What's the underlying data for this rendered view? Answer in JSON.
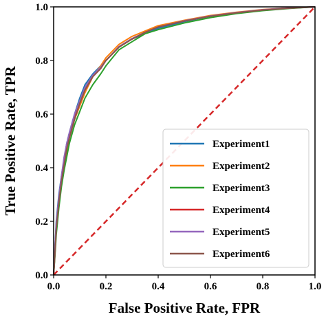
{
  "chart_data": {
    "type": "line",
    "title": "",
    "xlabel": "False Positive Rate, FPR",
    "ylabel": "True Positive Rate, TPR",
    "xlim": [
      0,
      1
    ],
    "ylim": [
      0,
      1
    ],
    "xticks": [
      "0.0",
      "0.2",
      "0.4",
      "0.6",
      "0.8",
      "1.0"
    ],
    "yticks": [
      "0.0",
      "0.2",
      "0.4",
      "0.6",
      "0.8",
      "1.0"
    ],
    "grid": false,
    "legend_position": "bottom-right",
    "reference_line": {
      "x": [
        0,
        1
      ],
      "y": [
        0,
        1
      ],
      "color": "#d62728",
      "style": "dashed"
    },
    "series": [
      {
        "name": "Experiment1",
        "color": "#1f77b4",
        "x": [
          0.0,
          0.005,
          0.01,
          0.02,
          0.03,
          0.04,
          0.05,
          0.06,
          0.08,
          0.1,
          0.12,
          0.15,
          0.18,
          0.2,
          0.25,
          0.3,
          0.35,
          0.4,
          0.5,
          0.6,
          0.7,
          0.8,
          0.9,
          1.0
        ],
        "y": [
          0.0,
          0.1,
          0.2,
          0.3,
          0.37,
          0.43,
          0.49,
          0.53,
          0.6,
          0.66,
          0.71,
          0.75,
          0.78,
          0.8,
          0.85,
          0.88,
          0.9,
          0.92,
          0.945,
          0.965,
          0.978,
          0.988,
          0.995,
          1.0
        ]
      },
      {
        "name": "Experiment2",
        "color": "#ff7f0e",
        "x": [
          0.0,
          0.005,
          0.01,
          0.02,
          0.03,
          0.04,
          0.05,
          0.06,
          0.08,
          0.1,
          0.12,
          0.15,
          0.18,
          0.2,
          0.25,
          0.3,
          0.35,
          0.4,
          0.5,
          0.6,
          0.7,
          0.8,
          0.9,
          1.0
        ],
        "y": [
          0.0,
          0.08,
          0.17,
          0.27,
          0.35,
          0.41,
          0.46,
          0.51,
          0.58,
          0.63,
          0.68,
          0.74,
          0.78,
          0.81,
          0.86,
          0.89,
          0.91,
          0.93,
          0.95,
          0.968,
          0.98,
          0.99,
          0.996,
          1.0
        ]
      },
      {
        "name": "Experiment3",
        "color": "#2ca02c",
        "x": [
          0.0,
          0.005,
          0.01,
          0.02,
          0.03,
          0.04,
          0.05,
          0.06,
          0.08,
          0.1,
          0.12,
          0.15,
          0.18,
          0.2,
          0.25,
          0.3,
          0.35,
          0.4,
          0.5,
          0.6,
          0.7,
          0.8,
          0.9,
          1.0
        ],
        "y": [
          0.0,
          0.07,
          0.15,
          0.25,
          0.33,
          0.39,
          0.44,
          0.49,
          0.56,
          0.61,
          0.66,
          0.71,
          0.75,
          0.78,
          0.84,
          0.87,
          0.9,
          0.915,
          0.94,
          0.96,
          0.975,
          0.986,
          0.994,
          1.0
        ]
      },
      {
        "name": "Experiment4",
        "color": "#d62728",
        "x": [
          0.0,
          0.005,
          0.01,
          0.02,
          0.03,
          0.04,
          0.05,
          0.06,
          0.08,
          0.1,
          0.12,
          0.15,
          0.18,
          0.2,
          0.25,
          0.3,
          0.35,
          0.4,
          0.5,
          0.6,
          0.7,
          0.8,
          0.9,
          1.0
        ],
        "y": [
          0.0,
          0.09,
          0.18,
          0.28,
          0.36,
          0.42,
          0.47,
          0.52,
          0.59,
          0.64,
          0.69,
          0.74,
          0.77,
          0.8,
          0.85,
          0.88,
          0.905,
          0.925,
          0.948,
          0.966,
          0.979,
          0.989,
          0.996,
          1.0
        ]
      },
      {
        "name": "Experiment5",
        "color": "#9467bd",
        "x": [
          0.0,
          0.005,
          0.01,
          0.02,
          0.03,
          0.04,
          0.05,
          0.06,
          0.08,
          0.1,
          0.12,
          0.15,
          0.18,
          0.2,
          0.25,
          0.3,
          0.35,
          0.4,
          0.5,
          0.6,
          0.7,
          0.8,
          0.9,
          1.0
        ],
        "y": [
          0.0,
          0.1,
          0.19,
          0.29,
          0.37,
          0.44,
          0.49,
          0.53,
          0.6,
          0.65,
          0.7,
          0.745,
          0.775,
          0.8,
          0.852,
          0.882,
          0.905,
          0.925,
          0.948,
          0.966,
          0.979,
          0.989,
          0.996,
          1.0
        ]
      },
      {
        "name": "Experiment6",
        "color": "#8c564b",
        "x": [
          0.0,
          0.005,
          0.01,
          0.02,
          0.03,
          0.04,
          0.05,
          0.06,
          0.08,
          0.1,
          0.12,
          0.15,
          0.18,
          0.2,
          0.25,
          0.3,
          0.35,
          0.4,
          0.5,
          0.6,
          0.7,
          0.8,
          0.9,
          1.0
        ],
        "y": [
          0.0,
          0.08,
          0.17,
          0.27,
          0.35,
          0.41,
          0.47,
          0.51,
          0.58,
          0.64,
          0.69,
          0.74,
          0.77,
          0.8,
          0.85,
          0.88,
          0.905,
          0.925,
          0.947,
          0.965,
          0.978,
          0.988,
          0.995,
          1.0
        ]
      }
    ]
  }
}
